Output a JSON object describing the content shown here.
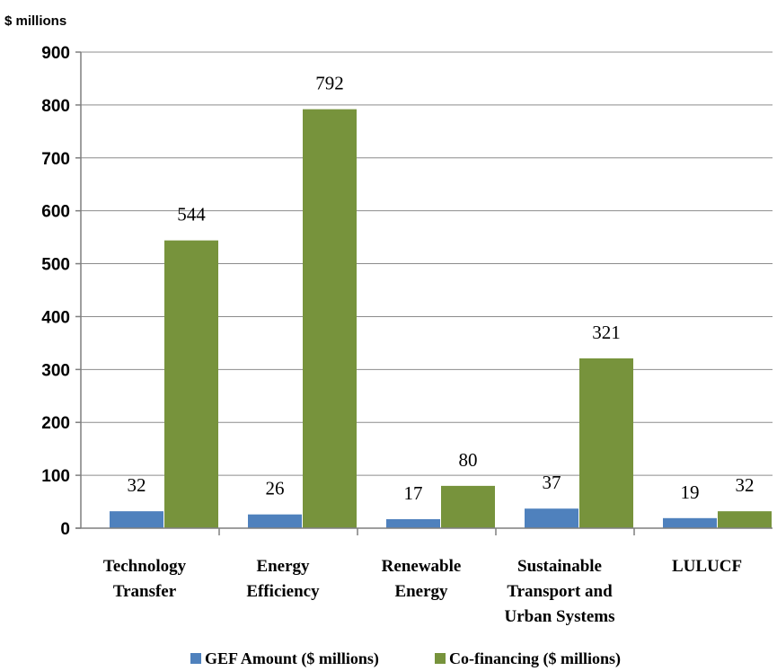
{
  "chart_data": {
    "type": "bar",
    "ylabel": "$ millions",
    "categories": [
      [
        "Technology",
        "Transfer"
      ],
      [
        "Energy",
        "Efficiency"
      ],
      [
        "Renewable",
        "Energy"
      ],
      [
        "Sustainable",
        "Transport and",
        "Urban Systems"
      ],
      [
        "LULUCF"
      ]
    ],
    "series": [
      {
        "name": "GEF Amount ($ millions)",
        "color": "#4f81bd",
        "values": [
          32,
          26,
          17,
          37,
          19
        ]
      },
      {
        "name": "Co-financing ($ millions)",
        "color": "#77933c",
        "values": [
          544,
          792,
          80,
          321,
          32
        ]
      }
    ],
    "ylim": [
      0,
      900
    ],
    "yticks": [
      0,
      100,
      200,
      300,
      400,
      500,
      600,
      700,
      800,
      900
    ],
    "grid": true,
    "legend": "bottom"
  }
}
